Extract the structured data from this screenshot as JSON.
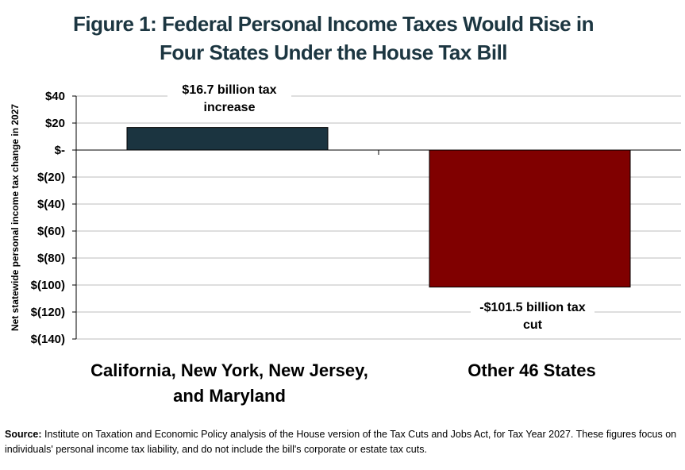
{
  "chart_data": {
    "type": "bar",
    "title_lines": [
      "Figure 1: Federal Personal Income Taxes Would Rise in",
      "Four States Under the House Tax Bill"
    ],
    "ylabel": "Net statewide personal income tax change in 2027",
    "xlabel": "",
    "categories": [
      [
        "California, New York, New Jersey,",
        "and Maryland"
      ],
      [
        "Other 46 States"
      ]
    ],
    "values": [
      16.7,
      -101.5
    ],
    "data_labels": [
      [
        "$16.7 billion tax",
        "increase"
      ],
      [
        "-$101.5 billion tax",
        "cut"
      ]
    ],
    "ylim": [
      -140,
      40
    ],
    "yticks": [
      40,
      20,
      0,
      -20,
      -40,
      -60,
      -80,
      -100,
      -120,
      -140
    ],
    "ytick_labels": [
      "$40",
      "$20",
      "$-",
      "$(20)",
      "$(40)",
      "$(60)",
      "$(80)",
      "$(100)",
      "$(120)",
      "$(140)"
    ],
    "grid": true,
    "colors": [
      "#1b3440",
      "#800000"
    ]
  },
  "source": {
    "label": "Source:",
    "text": "Institute on Taxation and Economic Policy analysis of the House version of the Tax Cuts and Jobs Act, for Tax Year 2027. These figures focus on individuals' personal income tax liability, and do not include the bill's corporate or estate tax cuts."
  }
}
